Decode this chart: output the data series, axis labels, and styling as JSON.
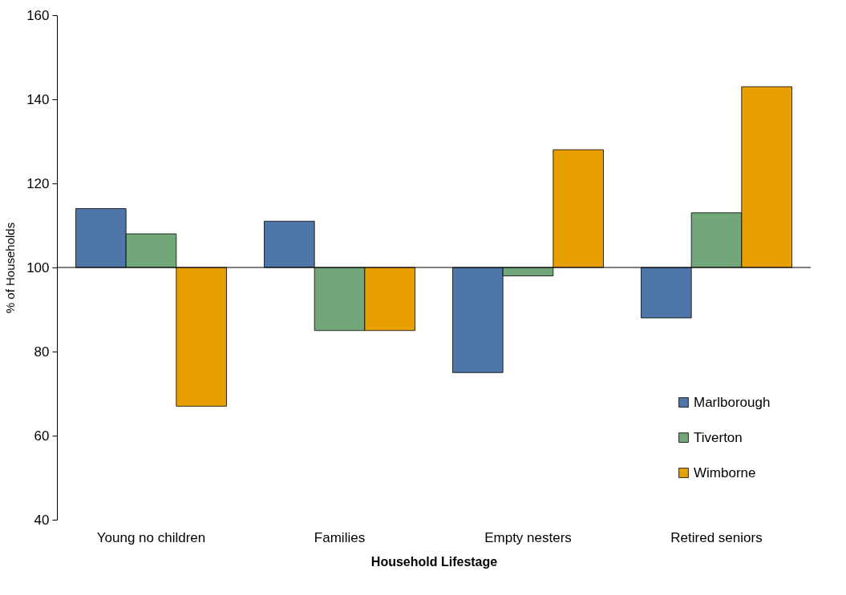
{
  "chart_data": {
    "type": "bar",
    "xlabel": "Household Lifestage",
    "ylabel": "% of Households",
    "categories": [
      "Young no children",
      "Families",
      "Empty nesters",
      "Retired seniors"
    ],
    "series": [
      {
        "name": "Marlborough",
        "color": "#4f76a8",
        "base": [
          100,
          100,
          100,
          100
        ],
        "values": [
          14,
          11,
          -25,
          -12
        ]
      },
      {
        "name": "Tiverton",
        "color": "#72a77a",
        "base": [
          100,
          100,
          100,
          100
        ],
        "values": [
          8,
          -15,
          -2,
          13
        ]
      },
      {
        "name": "Wimborne",
        "color": "#e8a000",
        "base": [
          100,
          100,
          100,
          100
        ],
        "values": [
          -33,
          -15,
          28,
          43
        ]
      }
    ],
    "ylim": [
      40,
      160
    ],
    "yticks": [
      40,
      60,
      80,
      100,
      120,
      140,
      160
    ],
    "ref_lines": [
      {
        "axis": "y",
        "value": 100
      }
    ],
    "grid": false,
    "legend": "bottom right"
  }
}
